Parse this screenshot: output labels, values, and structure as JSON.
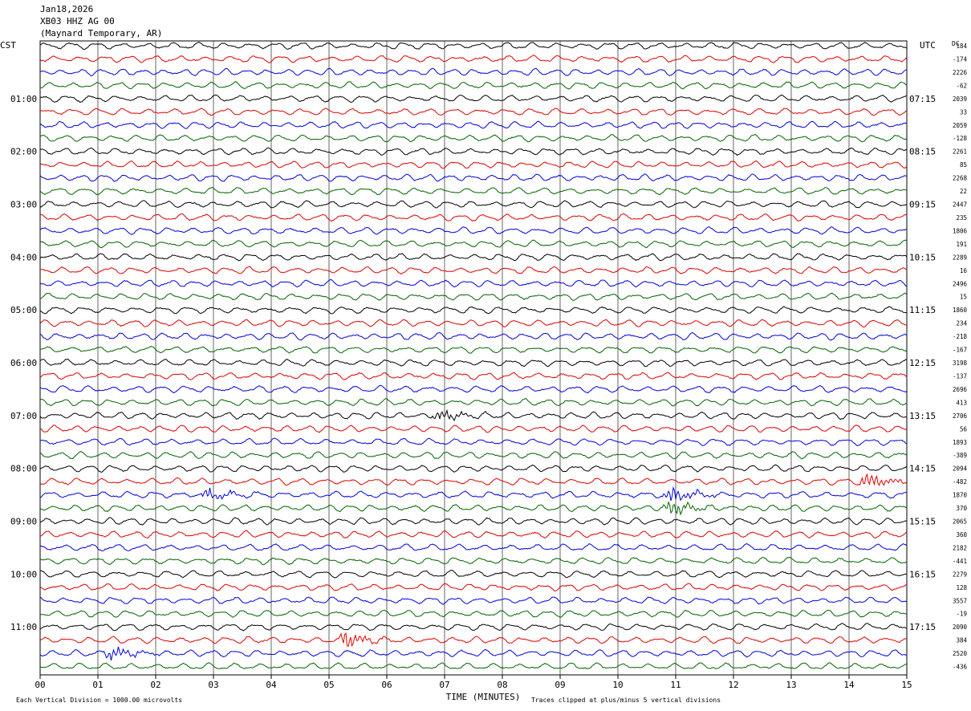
{
  "header": {
    "date": "Jan18,2026",
    "station": "XB03 HHZ AG 00",
    "location": "(Maynard Temporary, AR)"
  },
  "chart_data": {
    "type": "line",
    "chart_kind": "helicorder",
    "left_axis_label": "CST",
    "right_axis_label": "UTC",
    "dc_label": "DC",
    "xlabel": "TIME (MINUTES)",
    "x_ticks": [
      "00",
      "01",
      "02",
      "03",
      "04",
      "05",
      "06",
      "07",
      "08",
      "09",
      "10",
      "11",
      "12",
      "13",
      "14",
      "15"
    ],
    "xlim": [
      0,
      15
    ],
    "grid": "vertical lines every minute",
    "trace_colors": [
      "#000000",
      "#e00000",
      "#0000e0",
      "#006400"
    ],
    "left_hour_labels": [
      "01:00",
      "02:00",
      "03:00",
      "04:00",
      "05:00",
      "06:00",
      "07:00",
      "08:00",
      "09:00",
      "10:00",
      "11:00"
    ],
    "right_hour_labels": [
      "07:15",
      "08:15",
      "09:15",
      "10:15",
      "11:15",
      "12:15",
      "13:15",
      "14:15",
      "15:15",
      "16:15",
      "17:15"
    ],
    "dc_offsets": [
      "184",
      "-174",
      "2226",
      "-62",
      "2039",
      "33",
      "2059",
      "-128",
      "2261",
      "85",
      "2268",
      "22",
      "2447",
      "235",
      "1806",
      "191",
      "2289",
      "16",
      "2496",
      "15",
      "1860",
      "234",
      "-218",
      "-167",
      "3198",
      "-137",
      "2696",
      "413",
      "2706",
      "56",
      "1893",
      "-389",
      "2094",
      "-482",
      "1870",
      "370",
      "2065",
      "360",
      "2182",
      "-441",
      "2279",
      "128",
      "3557",
      "-19",
      "2090",
      "384",
      "2520",
      "-436"
    ],
    "events": [
      {
        "trace": 28,
        "minute": 6.9,
        "amp": 1.6
      },
      {
        "trace": 33,
        "minute": 14.3,
        "amp": 2.2
      },
      {
        "trace": 34,
        "minute": 2.9,
        "amp": 1.8
      },
      {
        "trace": 34,
        "minute": 10.9,
        "amp": 2.4
      },
      {
        "trace": 35,
        "minute": 10.9,
        "amp": 2.0
      },
      {
        "trace": 45,
        "minute": 5.3,
        "amp": 2.2
      },
      {
        "trace": 46,
        "minute": 1.2,
        "amp": 2.0
      }
    ],
    "footer_left": "Each Vertical Division = 1000.00 microvolts",
    "footer_right": "Traces clipped at plus/minus 5 vertical divisions"
  }
}
